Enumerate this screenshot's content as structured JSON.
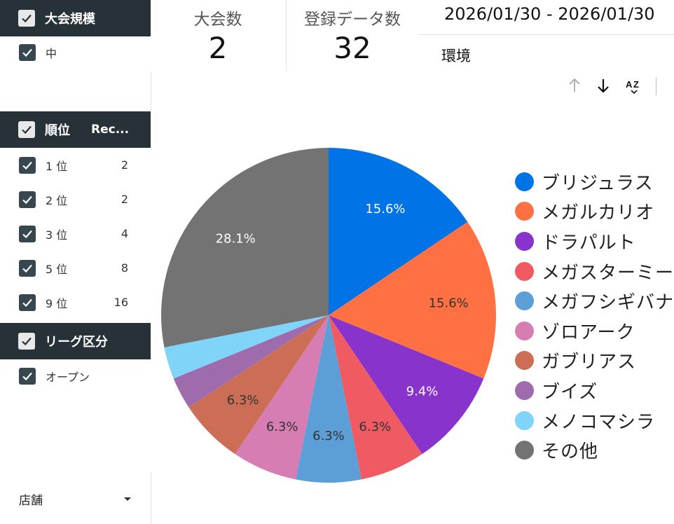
{
  "filters": {
    "size": {
      "title": "大会規模",
      "items": [
        {
          "label": "中"
        }
      ]
    },
    "rank": {
      "title": "順位",
      "col": "Rec...",
      "items": [
        {
          "label": "1 位",
          "count": "2"
        },
        {
          "label": "2 位",
          "count": "2"
        },
        {
          "label": "3 位",
          "count": "4"
        },
        {
          "label": "5 位",
          "count": "8"
        },
        {
          "label": "9 位",
          "count": "16"
        }
      ]
    },
    "league": {
      "title": "リーグ区分",
      "items": [
        {
          "label": "オープン"
        }
      ]
    },
    "store": {
      "label": "店舗"
    }
  },
  "scorecards": {
    "tournaments": {
      "label": "大会数",
      "value": "2"
    },
    "records": {
      "label": "登録データ数",
      "value": "32"
    }
  },
  "date_range": "2026/01/30 - 2026/01/30",
  "environment_label": "環境",
  "toolbar": {
    "icons": [
      "sort-ascending-icon",
      "sort-descending-icon",
      "sort-az-icon"
    ]
  },
  "colors": {
    "header_bg": "#263238",
    "checkbox_dark": "#37474f"
  },
  "chart_data": {
    "type": "pie",
    "start_angle": "12 o'clock, clockwise",
    "slices": [
      {
        "label": "ブリジュラス",
        "value": 15.6,
        "display": "15.6%",
        "color": "#0073e6",
        "label_color": "#ffffff"
      },
      {
        "label": "メガルカリオ",
        "value": 15.6,
        "display": "15.6%",
        "color": "#ff7043",
        "label_color": "#333333"
      },
      {
        "label": "ドラパルト",
        "value": 9.4,
        "display": "9.4%",
        "color": "#8833cc",
        "label_color": "#ffffff"
      },
      {
        "label": "メガスターミー",
        "value": 6.3,
        "display": "6.3%",
        "color": "#ef5a63",
        "label_color": "#333333"
      },
      {
        "label": "メガフシギバナ",
        "value": 6.3,
        "display": "6.3%",
        "color": "#5c9ed6",
        "label_color": "#333333"
      },
      {
        "label": "ゾロアーク",
        "value": 6.3,
        "display": "6.3%",
        "color": "#d67eb3",
        "label_color": "#333333"
      },
      {
        "label": "ガブリアス",
        "value": 6.3,
        "display": "6.3%",
        "color": "#cc6e55",
        "label_color": "#333333"
      },
      {
        "label": "ブイズ",
        "value": 3.1,
        "display": "",
        "color": "#9e6cad",
        "label_color": "#333333"
      },
      {
        "label": "メノコマシラ",
        "value": 3.1,
        "display": "",
        "color": "#7fd4f8",
        "label_color": "#333333"
      },
      {
        "label": "その他",
        "value": 28.1,
        "display": "28.1%",
        "color": "#737373",
        "label_color": "#ffffff"
      }
    ],
    "legend_placement": "right"
  }
}
